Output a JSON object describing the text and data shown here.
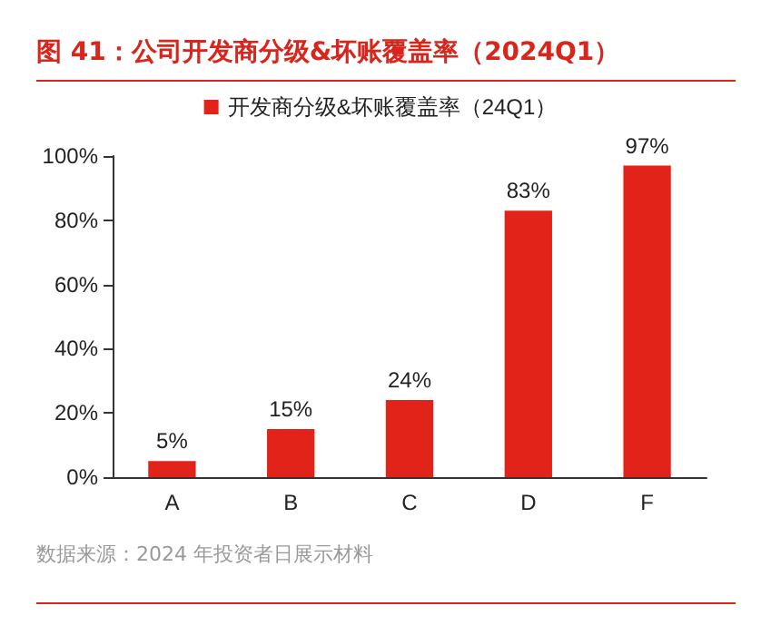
{
  "chart_data": {
    "type": "bar",
    "title": "图 41：公司开发商分级&坏账覆盖率（2024Q1）",
    "categories": [
      "A",
      "B",
      "C",
      "D",
      "F"
    ],
    "series": [
      {
        "name": "开发商分级&坏账覆盖率（24Q1）",
        "color": "#e2231a",
        "values": [
          5,
          15,
          24,
          83,
          97
        ],
        "value_labels": [
          "5%",
          "15%",
          "24%",
          "83%",
          "97%"
        ]
      }
    ],
    "ylim": [
      0,
      100
    ],
    "yticks": [
      {
        "value": 0,
        "label": "0%"
      },
      {
        "value": 20,
        "label": "20%"
      },
      {
        "value": 40,
        "label": "40%"
      },
      {
        "value": 60,
        "label": "60%"
      },
      {
        "value": 80,
        "label": "80%"
      },
      {
        "value": 100,
        "label": "100%"
      }
    ],
    "grid": false,
    "legend": "top",
    "annotations": [
      "数据来源：2024 年投资者日展示材料"
    ]
  }
}
